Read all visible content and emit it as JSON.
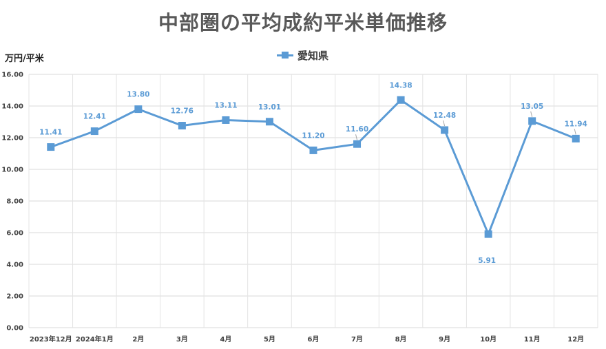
{
  "chart": {
    "title": "中部圏の平均成約平米単価推移",
    "unit_label": "万円/平米",
    "legend": {
      "label": "愛知県"
    }
  },
  "chart_data": {
    "type": "line",
    "title": "中部圏の平均成約平米単価推移",
    "ylabel": "万円/平米",
    "categories": [
      "2023年12月",
      "2024年1月",
      "2月",
      "3月",
      "4月",
      "5月",
      "6月",
      "7月",
      "8月",
      "9月",
      "10月",
      "11月",
      "12月"
    ],
    "series": [
      {
        "name": "愛知県",
        "color": "#5b9bd5",
        "marker": "square",
        "values": [
          11.41,
          12.41,
          13.8,
          12.76,
          13.11,
          13.01,
          11.2,
          11.6,
          14.38,
          12.48,
          5.91,
          13.05,
          11.94
        ]
      }
    ],
    "data_labels": [
      "11.41",
      "12.41",
      "13.80",
      "12.76",
      "13.11",
      "13.01",
      "11.20",
      "11.60",
      "14.38",
      "12.48",
      "5.91",
      "13.05",
      "11.94"
    ],
    "y_ticks": [
      "0.00",
      "2.00",
      "4.00",
      "6.00",
      "8.00",
      "10.00",
      "12.00",
      "14.00",
      "16.00"
    ],
    "ylim": [
      0,
      16
    ],
    "grid": true,
    "legend_position": "top-center"
  }
}
